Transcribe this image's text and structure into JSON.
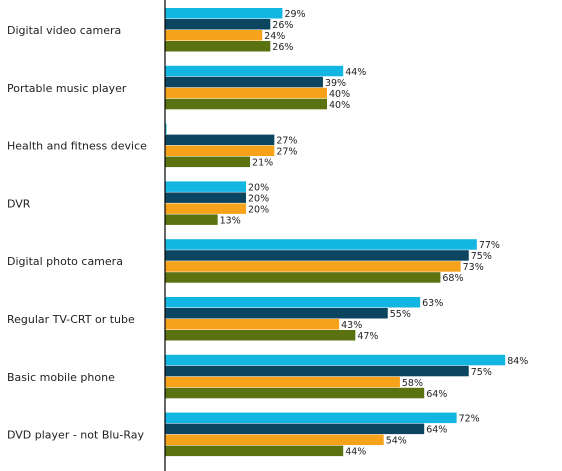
{
  "chart_data": {
    "type": "bar",
    "orientation": "horizontal",
    "title": "",
    "xlabel": "",
    "ylabel": "",
    "xlim": [
      0,
      100
    ],
    "grid": false,
    "legend": "none",
    "categories": [
      "Digital video camera",
      "Portable music player",
      "Health and fitness device",
      "DVR",
      "Digital photo camera",
      "Regular TV-CRT or tube",
      "Basic mobile phone",
      "DVD player - not Blu-Ray"
    ],
    "series": [
      {
        "color": "#12b6e0",
        "values": [
          29,
          44,
          null,
          20,
          77,
          63,
          84,
          72
        ],
        "labels": [
          "29%",
          "44%",
          "",
          "20%",
          "77%",
          "63%",
          "84%",
          "72%"
        ]
      },
      {
        "color": "#0b4560",
        "values": [
          26,
          39,
          27,
          20,
          75,
          55,
          75,
          64
        ],
        "labels": [
          "26%",
          "39%",
          "27%",
          "20%",
          "75%",
          "55%",
          "75%",
          "64%"
        ]
      },
      {
        "color": "#f6a31b",
        "values": [
          24,
          40,
          27,
          20,
          73,
          43,
          58,
          54
        ],
        "labels": [
          "24%",
          "40%",
          "27%",
          "20%",
          "73%",
          "43%",
          "58%",
          "54%"
        ]
      },
      {
        "color": "#5a7310",
        "values": [
          26,
          40,
          21,
          13,
          68,
          47,
          64,
          44
        ],
        "labels": [
          "26%",
          "40%",
          "21%",
          "13%",
          "68%",
          "47%",
          "64%",
          "44%"
        ]
      }
    ]
  }
}
